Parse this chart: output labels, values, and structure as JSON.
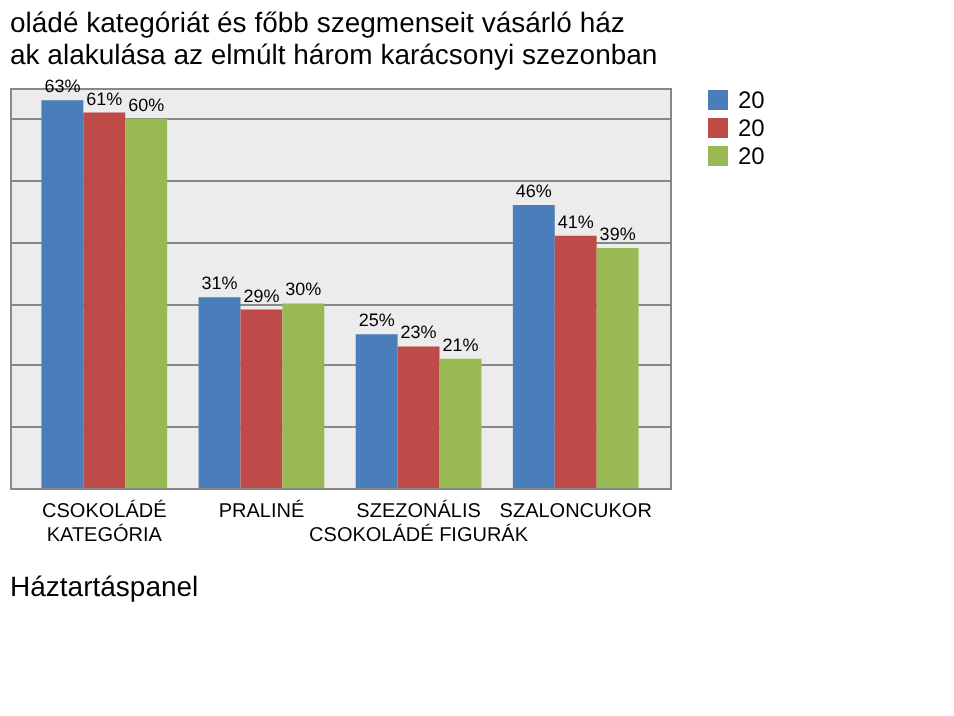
{
  "chart_data": {
    "type": "bar",
    "title": [
      "oládé kategóriát és főbb szegmenseit vásárló ház",
      "ak alakulása az elmúlt három karácsonyi szezonban"
    ],
    "categories": [
      "CSOKOLÁDÉ\nKATEGÓRIA",
      "PRALINÉ",
      "SZEZONÁLIS\nCSOKOLÁDÉ FIGURÁK",
      "SZALONCUKOR"
    ],
    "series": [
      {
        "name": "20",
        "color": "#4a7ebb",
        "values": [
          63,
          31,
          25,
          46
        ],
        "value_labels": [
          "63%",
          "31%",
          "25%",
          "46%"
        ]
      },
      {
        "name": "20",
        "color": "#be4b48",
        "values": [
          61,
          29,
          23,
          41
        ],
        "value_labels": [
          "61%",
          "29%",
          "23%",
          "41%"
        ]
      },
      {
        "name": "20",
        "color": "#98b954",
        "values": [
          60,
          30,
          21,
          39
        ],
        "value_labels": [
          "60%",
          "30%",
          "21%",
          "39%"
        ]
      }
    ],
    "data_labels": true,
    "tick_labels": "x",
    "grid": "y",
    "legend": "right",
    "annotations": [
      "Háztartáspanel"
    ]
  }
}
